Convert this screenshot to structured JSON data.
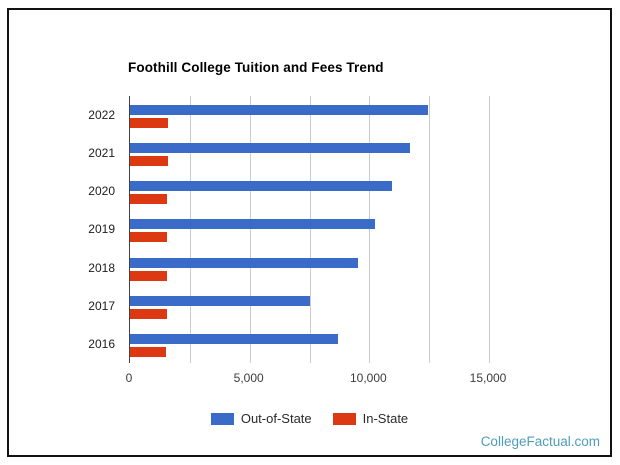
{
  "chart_data": {
    "type": "bar",
    "orientation": "horizontal",
    "title": "Foothill College Tuition and Fees Trend",
    "categories": [
      "2022",
      "2021",
      "2020",
      "2019",
      "2018",
      "2017",
      "2016"
    ],
    "series": [
      {
        "name": "Out-of-State",
        "color": "#3a6bc8",
        "values": [
          12460,
          11690,
          10930,
          10250,
          9520,
          7500,
          8710
        ]
      },
      {
        "name": "In-State",
        "color": "#dc3912",
        "values": [
          1590,
          1590,
          1550,
          1540,
          1550,
          1550,
          1520
        ]
      }
    ],
    "xlim": [
      0,
      15000
    ],
    "grid_step": 2500,
    "grid": "on",
    "x_ticks": [
      {
        "label": "0",
        "value": 0
      },
      {
        "label": "5,000",
        "value": 5000
      },
      {
        "label": "10,000",
        "value": 10000
      },
      {
        "label": "15,000",
        "value": 15000
      }
    ],
    "xlabel": "",
    "ylabel": "",
    "legend_position": "bottom"
  },
  "legend": {
    "items": [
      {
        "label": "Out-of-State",
        "color": "#3a6bc8"
      },
      {
        "label": "In-State",
        "color": "#dc3912"
      }
    ]
  },
  "footer": {
    "brand": "CollegeFactual.com",
    "color": "#4f9db8"
  },
  "colors": {
    "out_of_state": "#3a6bc8",
    "in_state": "#dc3912",
    "gridline": "#cccccc",
    "axis_line": "#424242",
    "frame_border": "#121212"
  }
}
